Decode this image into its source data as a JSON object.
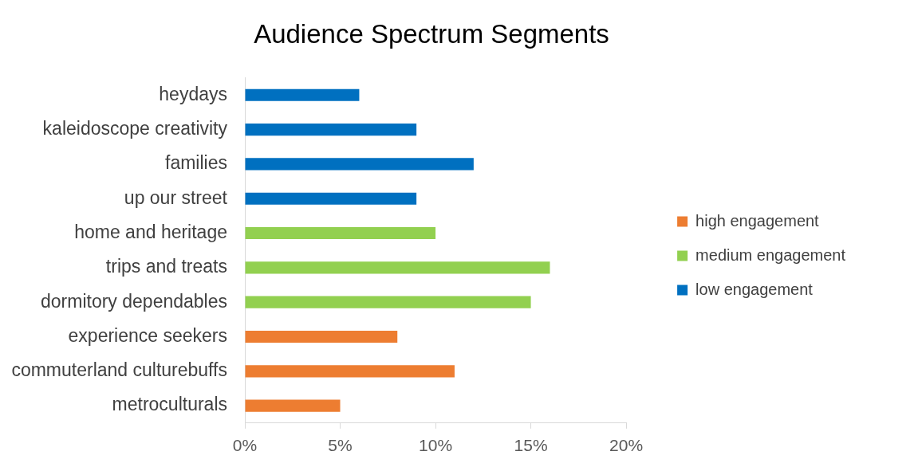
{
  "chart_data": {
    "type": "bar",
    "orientation": "horizontal",
    "title": "Audience Spectrum Segments",
    "categories": [
      "heydays",
      "kaleidoscope creativity",
      "families",
      "up our street",
      "home and heritage",
      "trips and treats",
      "dormitory dependables",
      "experience seekers",
      "commuterland culturebuffs",
      "metroculturals"
    ],
    "series": [
      {
        "name": "high engagement",
        "color": "#ed7d31",
        "values": [
          null,
          null,
          null,
          null,
          null,
          null,
          null,
          8,
          11,
          5
        ]
      },
      {
        "name": "medium engagement",
        "color": "#92d050",
        "values": [
          null,
          null,
          null,
          null,
          10,
          16,
          15,
          null,
          null,
          null
        ]
      },
      {
        "name": "low engagement",
        "color": "#0070c0",
        "values": [
          6,
          9,
          12,
          9,
          null,
          null,
          null,
          null,
          null,
          null
        ]
      }
    ],
    "xlim": [
      0,
      20
    ],
    "xticks": [
      {
        "value": 0,
        "label": "0%"
      },
      {
        "value": 5,
        "label": "5%"
      },
      {
        "value": 10,
        "label": "10%"
      },
      {
        "value": 15,
        "label": "15%"
      },
      {
        "value": 20,
        "label": "20%"
      }
    ],
    "legend": "right"
  }
}
